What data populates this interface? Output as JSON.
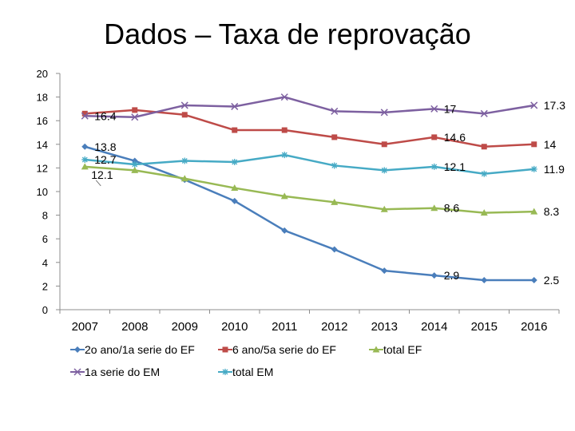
{
  "slide": {
    "title": "Dados – Taxa de reprovação"
  },
  "chart_data": {
    "type": "line",
    "title": "Dados – Taxa de reprovação",
    "xlabel": "",
    "ylabel": "",
    "ylim": [
      0,
      20
    ],
    "yticks": [
      0,
      2,
      4,
      6,
      8,
      10,
      12,
      14,
      16,
      18,
      20
    ],
    "categories": [
      "2007",
      "2008",
      "2009",
      "2010",
      "2011",
      "2012",
      "2013",
      "2014",
      "2015",
      "2016"
    ],
    "grid": false,
    "legend": "bottom",
    "series": [
      {
        "name": "2o ano/1a serie do EF",
        "color": "#4a7ebb",
        "marker": "diamond",
        "values": [
          13.8,
          12.6,
          11.0,
          9.2,
          6.7,
          5.1,
          3.3,
          2.9,
          2.5,
          2.5
        ]
      },
      {
        "name": "6 ano/5a serie do EF",
        "color": "#be4b48",
        "marker": "square",
        "values": [
          16.6,
          16.9,
          16.5,
          15.2,
          15.2,
          14.6,
          14.0,
          14.6,
          13.8,
          14.0
        ]
      },
      {
        "name": "total EF",
        "color": "#98b954",
        "marker": "triangle",
        "values": [
          12.1,
          11.8,
          11.1,
          10.3,
          9.6,
          9.1,
          8.5,
          8.6,
          8.2,
          8.3
        ]
      },
      {
        "name": "1a serie do EM",
        "color": "#7d60a0",
        "marker": "x",
        "values": [
          16.4,
          16.3,
          17.3,
          17.2,
          18.0,
          16.8,
          16.7,
          17.0,
          16.6,
          17.3
        ]
      },
      {
        "name": "total EM",
        "color": "#46aac5",
        "marker": "star",
        "values": [
          12.7,
          12.3,
          12.6,
          12.5,
          13.1,
          12.2,
          11.8,
          12.1,
          11.5,
          11.9
        ]
      }
    ],
    "data_labels": [
      {
        "text": "16.4",
        "series": 3,
        "index": 0,
        "place": "right"
      },
      {
        "text": "13.8",
        "series": 0,
        "index": 0,
        "place": "right"
      },
      {
        "text": "12.7",
        "series": 4,
        "index": 0,
        "place": "right"
      },
      {
        "text": "12.1",
        "series": 2,
        "index": 0,
        "place": "right-below"
      },
      {
        "text": "17",
        "series": 3,
        "index": 7,
        "place": "right"
      },
      {
        "text": "14.6",
        "series": 1,
        "index": 7,
        "place": "right"
      },
      {
        "text": "12.1",
        "series": 4,
        "index": 7,
        "place": "right"
      },
      {
        "text": "8.6",
        "series": 2,
        "index": 7,
        "place": "right"
      },
      {
        "text": "2.9",
        "series": 0,
        "index": 7,
        "place": "right"
      },
      {
        "text": "17.3",
        "series": 3,
        "index": 9,
        "place": "right"
      },
      {
        "text": "14",
        "series": 1,
        "index": 9,
        "place": "right"
      },
      {
        "text": "11.9",
        "series": 4,
        "index": 9,
        "place": "right"
      },
      {
        "text": "8.3",
        "series": 2,
        "index": 9,
        "place": "right"
      },
      {
        "text": "2.5",
        "series": 0,
        "index": 9,
        "place": "right"
      }
    ]
  }
}
